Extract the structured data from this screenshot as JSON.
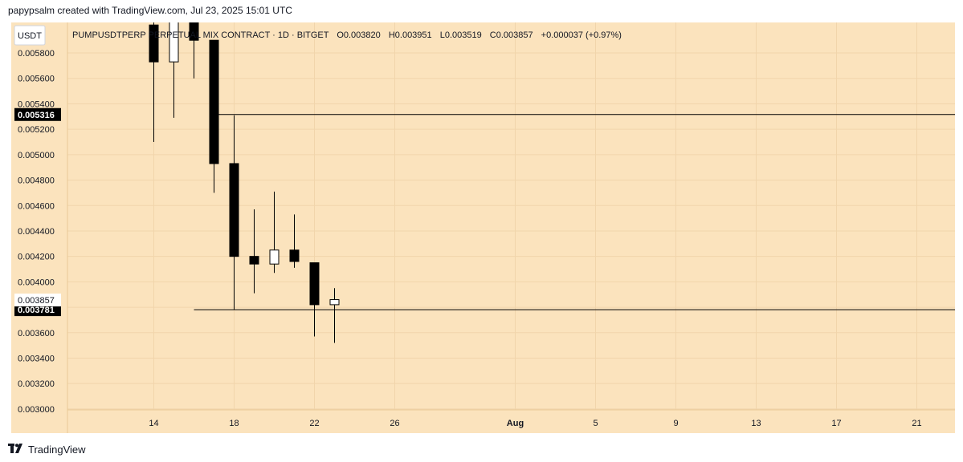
{
  "caption": "papypsalm created with TradingView.com, Jul 23, 2025 15:01 UTC",
  "footer": {
    "brand": "TradingView",
    "logo_icon": "tradingview-logo-icon"
  },
  "colors": {
    "background": "#fbe3bd",
    "grid": "#f1d5ab",
    "candle": "#000000",
    "hollow": "#ffffff",
    "line": "#000000"
  },
  "chart_data": {
    "type": "candlestick",
    "currency_label": "USDT",
    "legend": {
      "symbol_info": "PUMPUSDTPERP PERPETUAL MIX CONTRACT · 1D · BITGET",
      "open": "O0.003820",
      "high": "H0.003951",
      "low": "L0.003519",
      "close": "C0.003857",
      "change": "+0.000037 (+0.97%)"
    },
    "y_ticks": [
      "0.005800",
      "0.005600",
      "0.005400",
      "0.005200",
      "0.005000",
      "0.004800",
      "0.004600",
      "0.004400",
      "0.004200",
      "0.004000",
      "0.003800",
      "0.003600",
      "0.003400",
      "0.003200",
      "0.003000"
    ],
    "x_ticks": [
      {
        "label": "14",
        "day": 14
      },
      {
        "label": "18",
        "day": 18
      },
      {
        "label": "22",
        "day": 22
      },
      {
        "label": "26",
        "day": 26
      },
      {
        "label": "Aug",
        "day": 32
      },
      {
        "label": "5",
        "day": 36
      },
      {
        "label": "9",
        "day": 40
      },
      {
        "label": "13",
        "day": 44
      },
      {
        "label": "17",
        "day": 48
      },
      {
        "label": "21",
        "day": 52
      }
    ],
    "ylim": [
      0.00281,
      0.00604
    ],
    "xlim": [
      9.7,
      53.9
    ],
    "candles": [
      {
        "day": 14,
        "open": 0.00602,
        "high": 0.00612,
        "low": 0.0051,
        "close": 0.00573
      },
      {
        "day": 15,
        "open": 0.00573,
        "high": 0.00612,
        "low": 0.00529,
        "close": 0.00612
      },
      {
        "day": 16,
        "open": 0.00612,
        "high": 0.00612,
        "low": 0.0056,
        "close": 0.0059
      },
      {
        "day": 17,
        "open": 0.0059,
        "high": 0.0059,
        "low": 0.0047,
        "close": 0.00493
      },
      {
        "day": 18,
        "open": 0.00493,
        "high": 0.00531,
        "low": 0.00378,
        "close": 0.0042
      },
      {
        "day": 19,
        "open": 0.0042,
        "high": 0.00457,
        "low": 0.00391,
        "close": 0.00414
      },
      {
        "day": 20,
        "open": 0.00414,
        "high": 0.00471,
        "low": 0.00407,
        "close": 0.00425
      },
      {
        "day": 21,
        "open": 0.00425,
        "high": 0.00453,
        "low": 0.00411,
        "close": 0.00416
      },
      {
        "day": 22,
        "open": 0.00415,
        "high": 0.00415,
        "low": 0.00357,
        "close": 0.00382
      },
      {
        "day": 23,
        "open": 0.00382,
        "high": 0.00395,
        "low": 0.00352,
        "close": 0.00386
      }
    ],
    "horizontal_lines": [
      {
        "price": 0.005316,
        "label": "0.005316",
        "start_day": 17
      },
      {
        "price": 0.003781,
        "label": "0.003781",
        "start_day": 16
      }
    ],
    "current_price": {
      "price": 0.003857,
      "label": "0.003857"
    }
  }
}
